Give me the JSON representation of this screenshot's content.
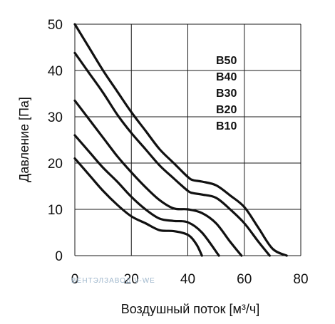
{
  "chart_data": {
    "type": "line",
    "xlabel": "Воздушный поток [м³/ч]",
    "ylabel": "Давление [Па]",
    "xlim": [
      0,
      80
    ],
    "ylim": [
      0,
      50
    ],
    "x_ticks": [
      "0",
      "20",
      "40",
      "60",
      "80"
    ],
    "y_ticks": [
      "0",
      "10",
      "20",
      "30",
      "40",
      "50"
    ],
    "grid": true,
    "legend": "inline labels top-right",
    "watermark": "ВЕНТЭЛЗАВОД   V-WE",
    "series": [
      {
        "name": "B50",
        "x": [
          0,
          5,
          10,
          15,
          20,
          25,
          30,
          35,
          40,
          42,
          45,
          50,
          55,
          60,
          65,
          70,
          75
        ],
        "y": [
          50,
          45,
          40,
          35.5,
          31,
          27,
          23,
          20,
          17,
          16.3,
          16,
          15.2,
          13,
          10.5,
          6,
          1.5,
          0
        ]
      },
      {
        "name": "B40",
        "x": [
          0,
          5,
          10,
          15,
          20,
          25,
          30,
          35,
          40,
          42,
          45,
          50,
          55,
          60,
          65,
          69
        ],
        "y": [
          43.8,
          39.5,
          35.2,
          30.5,
          26.5,
          23,
          19.5,
          16.7,
          14,
          13.5,
          13.2,
          12.5,
          10,
          7,
          3,
          0
        ]
      },
      {
        "name": "B30",
        "x": [
          0,
          5,
          10,
          15,
          20,
          25,
          30,
          35,
          40,
          45,
          50,
          55,
          59
        ],
        "y": [
          33.5,
          29.5,
          25.5,
          21.5,
          18,
          14.8,
          12,
          10.2,
          10,
          9.2,
          7,
          3,
          0
        ]
      },
      {
        "name": "B20",
        "x": [
          0,
          5,
          10,
          15,
          20,
          25,
          30,
          35,
          40,
          45,
          51
        ],
        "y": [
          26,
          22.5,
          19,
          16,
          12.7,
          10,
          8,
          7.5,
          7.2,
          5,
          0
        ]
      },
      {
        "name": "B10",
        "x": [
          0,
          5,
          10,
          15,
          20,
          25,
          30,
          35,
          40,
          43,
          45
        ],
        "y": [
          21,
          17.5,
          14,
          11,
          8.5,
          7,
          5.5,
          5.3,
          4.5,
          2.5,
          0
        ]
      }
    ]
  }
}
